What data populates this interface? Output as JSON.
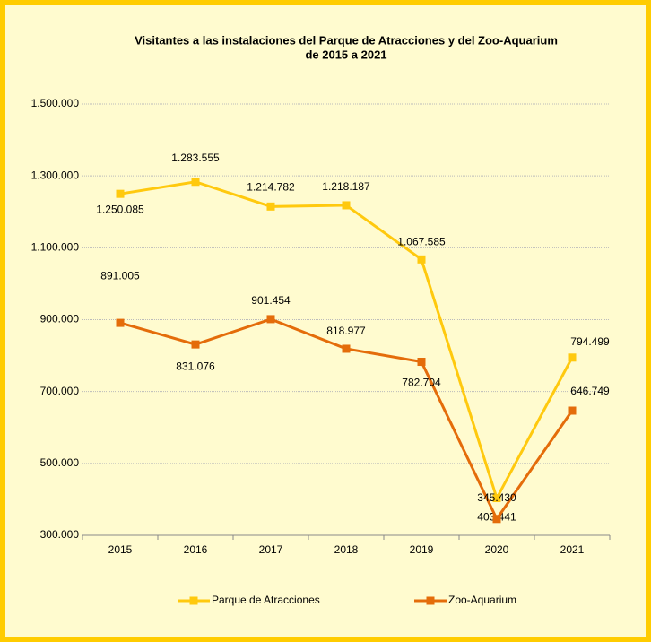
{
  "chart_data": {
    "type": "line",
    "title": [
      "Visitantes a las instalaciones del  Parque de Atracciones y del Zoo-Aquarium",
      "de 2015 a 2021"
    ],
    "categories": [
      "2015",
      "2016",
      "2017",
      "2018",
      "2019",
      "2020",
      "2021"
    ],
    "series": [
      {
        "name": "Parque de Atracciones",
        "color": "#FFC90E",
        "values": [
          1250085,
          1283555,
          1214782,
          1218187,
          1067585,
          403441,
          794499
        ],
        "value_labels": [
          "1.250.085",
          "1.283.555",
          "1.214.782",
          "1.218.187",
          "1.067.585",
          "403.441",
          "794.499"
        ]
      },
      {
        "name": "Zoo-Aquarium",
        "color": "#E46C0A",
        "values": [
          891005,
          831076,
          901454,
          818977,
          782704,
          345430,
          646749
        ],
        "value_labels": [
          "891.005",
          "831.076",
          "901.454",
          "818.977",
          "782.704",
          "345.430",
          "646.749"
        ]
      }
    ],
    "ylim": [
      300000,
      1500000
    ],
    "yticks": [
      {
        "value": 300000,
        "label": "300.000"
      },
      {
        "value": 500000,
        "label": "500.000"
      },
      {
        "value": 700000,
        "label": "700.000"
      },
      {
        "value": 900000,
        "label": "900.000"
      },
      {
        "value": 1100000,
        "label": "1.100.000"
      },
      {
        "value": 1300000,
        "label": "1.300.000"
      },
      {
        "value": 1500000,
        "label": "1.500.000"
      }
    ],
    "grid": true,
    "legend": "bottom"
  }
}
